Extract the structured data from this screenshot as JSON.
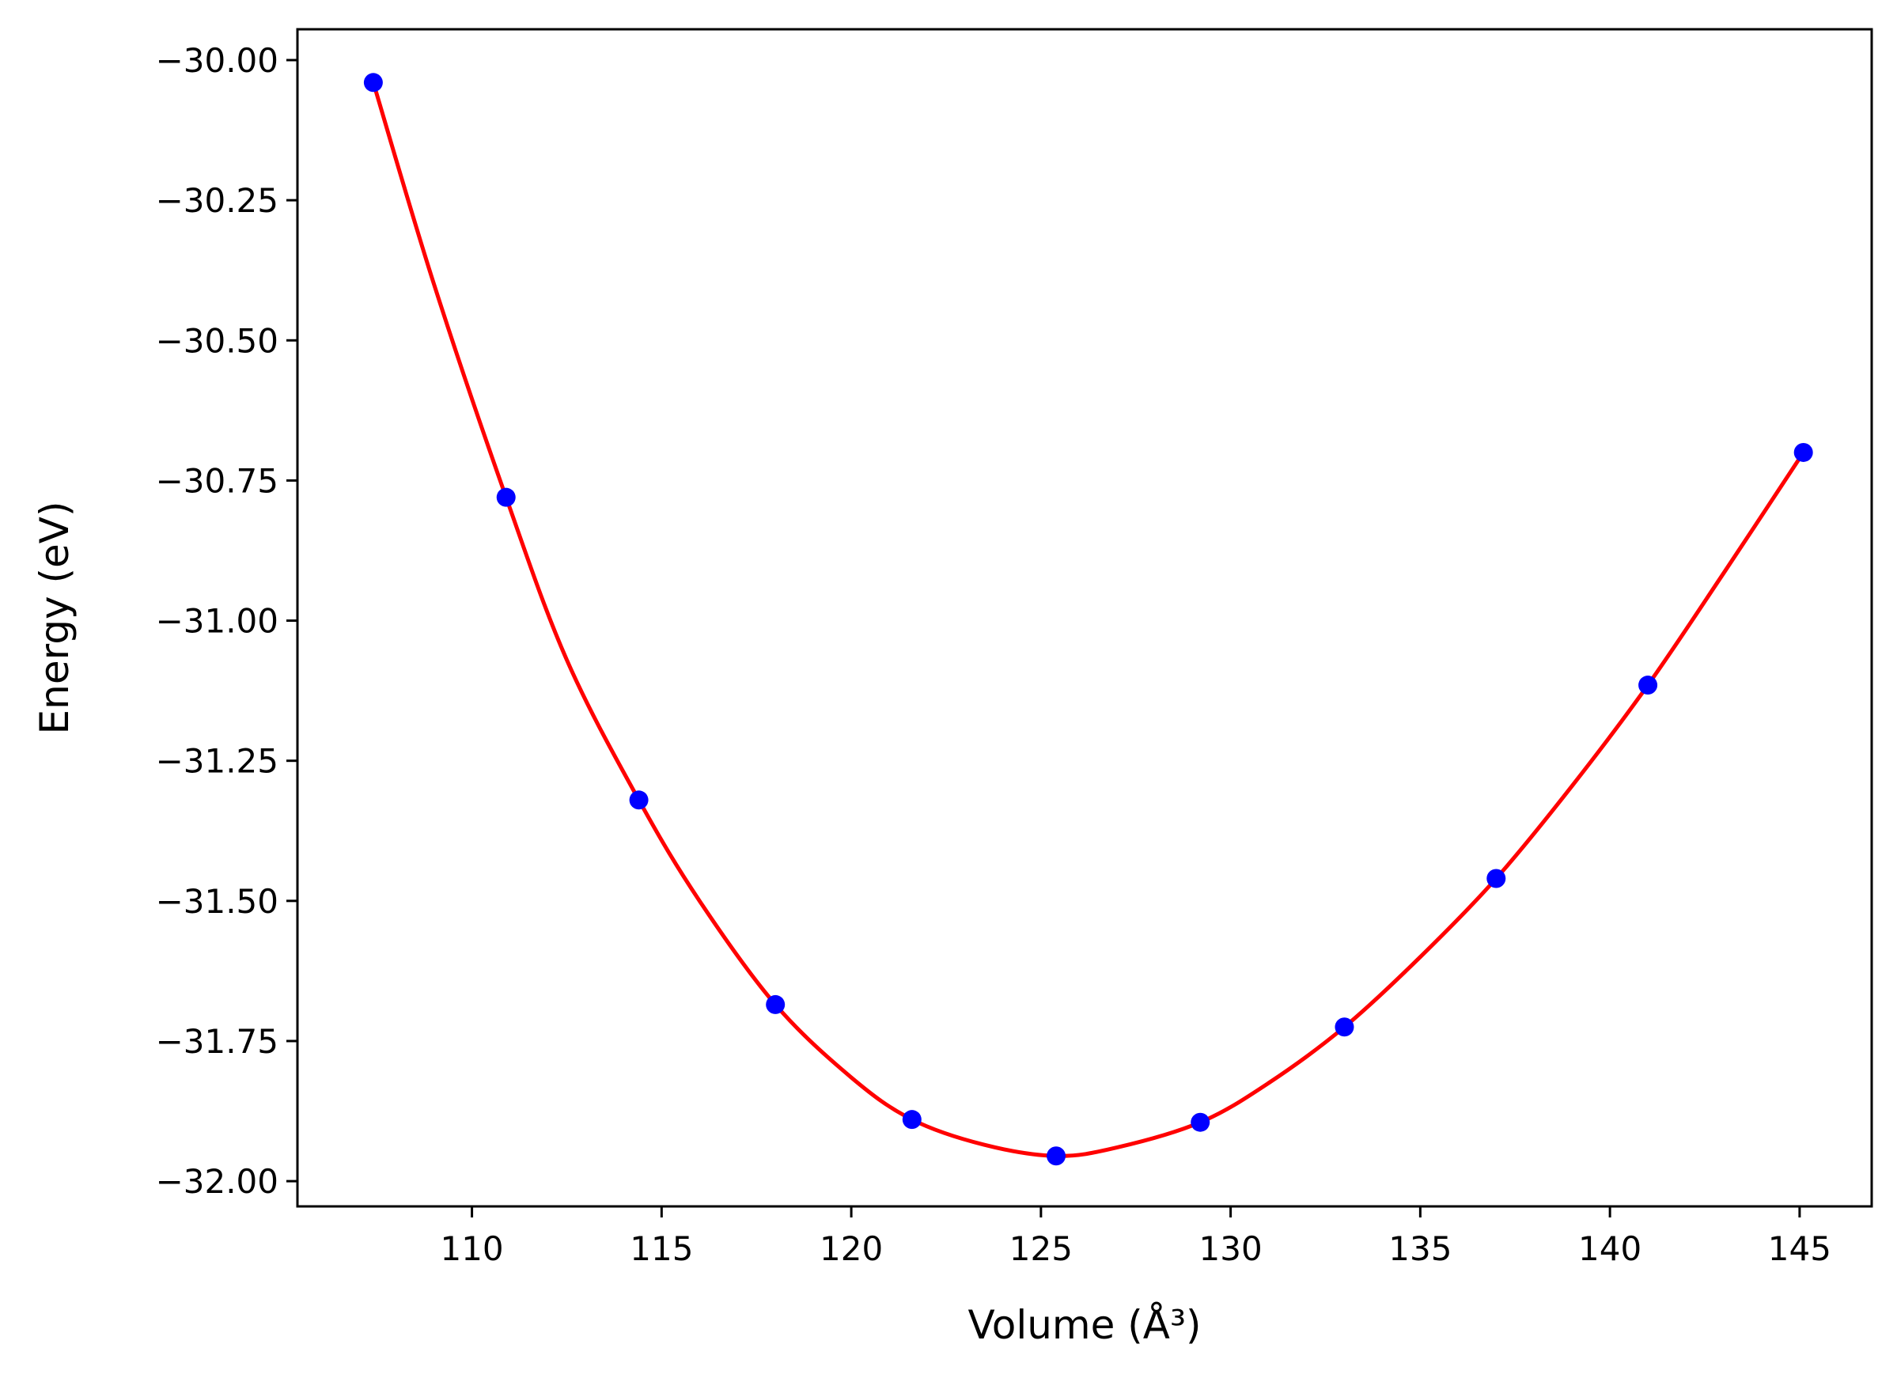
{
  "chart_data": {
    "type": "scatter",
    "title": "",
    "xlabel": "Volume (Å³)",
    "ylabel": "Energy (eV)",
    "xlim": [
      105.4,
      146.9
    ],
    "ylim": [
      -32.045,
      -29.945
    ],
    "x_ticks": [
      110,
      115,
      120,
      125,
      130,
      135,
      140,
      145
    ],
    "x_tick_labels": [
      "110",
      "115",
      "120",
      "125",
      "130",
      "135",
      "140",
      "145"
    ],
    "y_ticks": [
      -30.0,
      -30.25,
      -30.5,
      -30.75,
      -31.0,
      -31.25,
      -31.5,
      -31.75,
      -32.0
    ],
    "y_tick_labels": [
      "−30.00",
      "−30.25",
      "−30.50",
      "−30.75",
      "−31.00",
      "−31.25",
      "−31.50",
      "−31.75",
      "−32.00"
    ],
    "grid": false,
    "series": [
      {
        "kind": "points",
        "color": "#0000ff",
        "x": [
          107.4,
          110.9,
          114.4,
          118.0,
          121.6,
          125.4,
          129.2,
          133.0,
          137.0,
          141.0,
          145.1
        ],
        "y": [
          -30.04,
          -30.78,
          -31.32,
          -31.685,
          -31.89,
          -31.955,
          -31.895,
          -31.725,
          -31.46,
          -31.115,
          -30.7
        ]
      },
      {
        "kind": "fit-curve",
        "color": "#ff0000",
        "x": [
          107.4,
          109.0,
          110.9,
          112.5,
          114.4,
          116.0,
          118.0,
          120.0,
          121.6,
          123.5,
          125.4,
          127.0,
          129.2,
          131.0,
          133.0,
          135.0,
          137.0,
          139.0,
          141.0,
          143.0,
          145.1
        ],
        "y": [
          -30.04,
          -30.4,
          -30.78,
          -31.07,
          -31.32,
          -31.5,
          -31.685,
          -31.815,
          -31.89,
          -31.935,
          -31.955,
          -31.94,
          -31.895,
          -31.825,
          -31.725,
          -31.6,
          -31.46,
          -31.295,
          -31.115,
          -30.915,
          -30.7
        ]
      }
    ],
    "legend": "none"
  }
}
